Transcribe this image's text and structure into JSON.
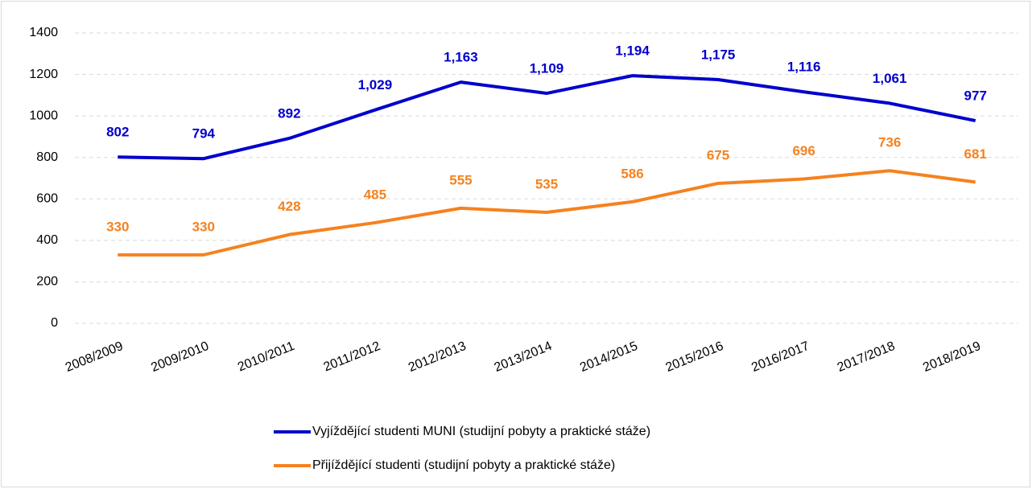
{
  "chart_data": {
    "type": "line",
    "categories": [
      "2008/2009",
      "2009/2010",
      "2010/2011",
      "2011/2012",
      "2012/2013",
      "2013/2014",
      "2014/2015",
      "2015/2016",
      "2016/2017",
      "2017/2018",
      "2018/2019"
    ],
    "series": [
      {
        "name": "Vyjíždějící studenti MUNI (studijní pobyty a praktické stáže)",
        "color": "#0000cc",
        "values": [
          802,
          794,
          892,
          1029,
          1163,
          1109,
          1194,
          1175,
          1116,
          1061,
          977
        ],
        "value_labels": [
          "802",
          "794",
          "892",
          "1,029",
          "1,163",
          "1,109",
          "1,194",
          "1,175",
          "1,116",
          "1,061",
          "977"
        ]
      },
      {
        "name": "Přijíždějící studenti (studijní pobyty a praktické stáže)",
        "color": "#f5821f",
        "values": [
          330,
          330,
          428,
          485,
          555,
          535,
          586,
          675,
          696,
          736,
          681
        ]
      }
    ],
    "ylim": [
      0,
      1400
    ],
    "yticks": [
      0,
      200,
      400,
      600,
      800,
      1000,
      1200,
      1400
    ],
    "grid": true,
    "legend": "bottom"
  }
}
